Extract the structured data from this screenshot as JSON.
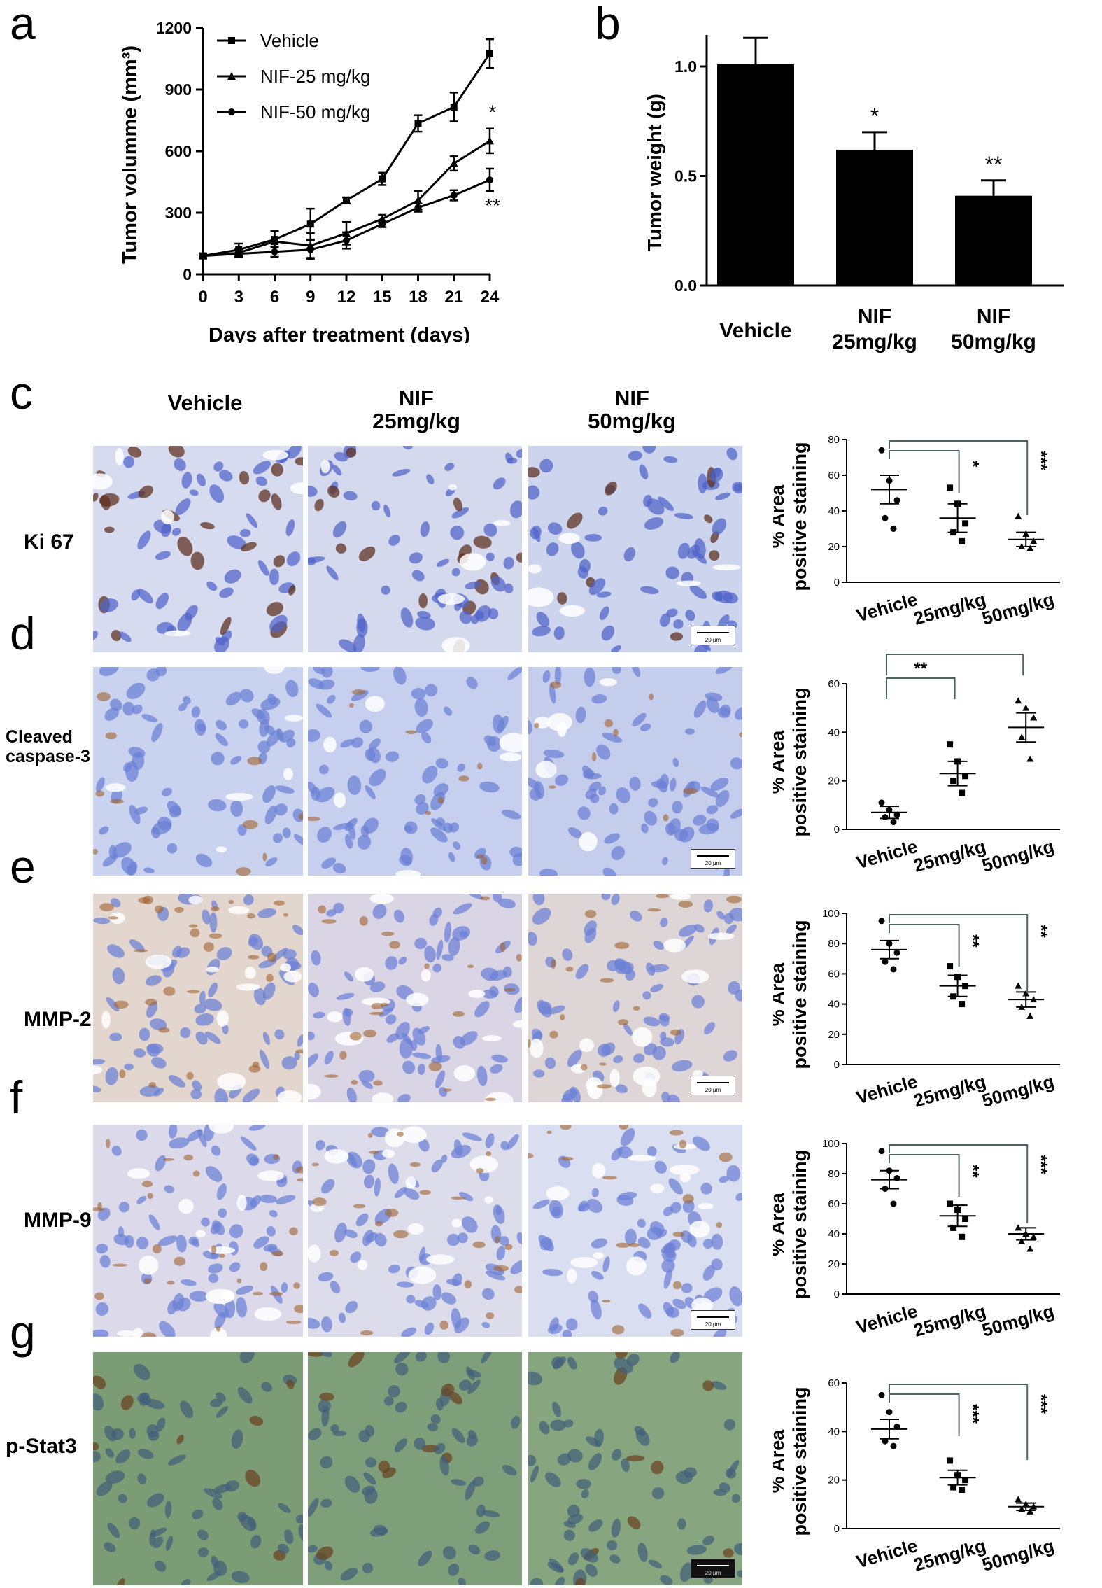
{
  "panel_labels": [
    "a",
    "b",
    "c",
    "d",
    "e",
    "f",
    "g"
  ],
  "ihc": {
    "columns": [
      {
        "line1": "Vehicle",
        "line2": ""
      },
      {
        "line1": "NIF",
        "line2": "25mg/kg"
      },
      {
        "line1": "NIF",
        "line2": "50mg/kg"
      }
    ],
    "rows": [
      {
        "label_line1": "Ki 67",
        "label_line2": "",
        "stain": "brown-nuclear",
        "tissue_colors": [
          "#d7dbef",
          "#d5d9ee",
          "#cdd4ee"
        ]
      },
      {
        "label_line1": "Cleaved",
        "label_line2": "caspase-3",
        "stain": "light-brown",
        "tissue_colors": [
          "#c9d2ee",
          "#c7cfee",
          "#c5cdec"
        ]
      },
      {
        "label_line1": "MMP-2",
        "label_line2": "",
        "stain": "brown-cytoplasmic",
        "tissue_colors": [
          "#e3d6cf",
          "#d9d5e4",
          "#ddd5d6"
        ]
      },
      {
        "label_line1": "MMP-9",
        "label_line2": "",
        "stain": "brown-cytoplasmic",
        "tissue_colors": [
          "#dcdaea",
          "#dcdcea",
          "#d9def0"
        ]
      },
      {
        "label_line1": "p-Stat3",
        "label_line2": "",
        "stain": "brown-nuclear-on-green",
        "tissue_colors": [
          "#7b9c74",
          "#7e9f79",
          "#87a57f"
        ]
      }
    ],
    "scale_bar_label": "20 μm"
  },
  "chart_data": [
    {
      "id": "a",
      "type": "line",
      "xlabel": "Days after treatment (days)",
      "ylabel": "Tumor volumme (mm³)",
      "x": [
        0,
        3,
        6,
        9,
        12,
        15,
        18,
        21,
        24
      ],
      "xticks": [
        "0",
        "3",
        "6",
        "9",
        "12",
        "15",
        "18",
        "21",
        "24"
      ],
      "ylim": [
        0,
        1200
      ],
      "yticks": [
        "0",
        "300",
        "600",
        "900",
        "1200"
      ],
      "series": [
        {
          "name": "Vehicle",
          "marker": "square",
          "values": [
            90,
            120,
            170,
            245,
            360,
            465,
            735,
            815,
            1075
          ],
          "errors": [
            12,
            30,
            40,
            75,
            15,
            30,
            40,
            70,
            70
          ]
        },
        {
          "name": "NIF-25 mg/kg",
          "marker": "triangle",
          "values": [
            90,
            105,
            160,
            140,
            200,
            270,
            360,
            540,
            650
          ],
          "errors": [
            10,
            20,
            50,
            60,
            55,
            20,
            45,
            35,
            60
          ]
        },
        {
          "name": "NIF-50 mg/kg",
          "marker": "dot",
          "values": [
            90,
            100,
            110,
            120,
            165,
            245,
            325,
            385,
            460
          ],
          "errors": [
            10,
            15,
            25,
            45,
            40,
            15,
            20,
            25,
            55
          ]
        }
      ],
      "annotations": [
        {
          "series": "NIF-25 mg/kg",
          "text": "*"
        },
        {
          "series": "NIF-50 mg/kg",
          "text": "**"
        }
      ]
    },
    {
      "id": "b",
      "type": "bar",
      "ylabel": "Tumor  weight  (g)",
      "categories": [
        {
          "line1": "Vehicle",
          "line2": ""
        },
        {
          "line1": "NIF",
          "line2": "25mg/kg"
        },
        {
          "line1": "NIF",
          "line2": "50mg/kg"
        }
      ],
      "values": [
        1.01,
        0.62,
        0.41
      ],
      "errors": [
        0.12,
        0.08,
        0.07
      ],
      "significance": [
        "",
        "*",
        "**"
      ],
      "ylim": [
        0,
        1.0
      ],
      "yticks": [
        "0.0",
        "0.5",
        "1.0"
      ]
    },
    {
      "id": "c",
      "type": "scatter",
      "ylabel_line1": "% Area",
      "ylabel_line2": "positive staining",
      "categories": [
        "Vehicle",
        "25mg/kg",
        "50mg/kg"
      ],
      "ylim": [
        0,
        80
      ],
      "yticks": [
        "0",
        "20",
        "40",
        "60",
        "80"
      ],
      "points": [
        [
          74,
          57,
          46,
          36,
          30
        ],
        [
          53,
          44,
          33,
          28,
          23
        ],
        [
          37,
          27,
          23,
          20,
          19
        ]
      ],
      "means": [
        52,
        36,
        24
      ],
      "sem": [
        8,
        8,
        4
      ],
      "comparisons": [
        {
          "to": 1,
          "label": "*"
        },
        {
          "to": 2,
          "label": "***"
        }
      ],
      "bracket_style": "top-vertical"
    },
    {
      "id": "d",
      "type": "scatter",
      "ylabel_line1": "% Area",
      "ylabel_line2": "positive staining",
      "categories": [
        "Vehicle",
        "25mg/kg",
        "50mg/kg"
      ],
      "ylim": [
        0,
        60
      ],
      "yticks": [
        "0",
        "20",
        "40",
        "60"
      ],
      "points": [
        [
          11,
          8,
          6,
          5,
          3
        ],
        [
          35,
          28,
          22,
          20,
          15
        ],
        [
          53,
          50,
          46,
          38,
          29
        ]
      ],
      "means": [
        7,
        23,
        42
      ],
      "sem": [
        2.5,
        5,
        6
      ],
      "comparisons": [
        {
          "to": 1,
          "label": "**"
        },
        {
          "to": 2,
          "label": "***"
        }
      ],
      "bracket_style": "horizontal"
    },
    {
      "id": "e",
      "type": "scatter",
      "ylabel_line1": "% Area",
      "ylabel_line2": "positive staining",
      "categories": [
        "Vehicle",
        "25mg/kg",
        "50mg/kg"
      ],
      "ylim": [
        0,
        100
      ],
      "yticks": [
        "0",
        "20",
        "40",
        "60",
        "80",
        "100"
      ],
      "points": [
        [
          95,
          80,
          74,
          68,
          63
        ],
        [
          65,
          58,
          52,
          45,
          40
        ],
        [
          52,
          47,
          43,
          38,
          32
        ]
      ],
      "means": [
        76,
        52,
        43
      ],
      "sem": [
        6,
        7,
        5
      ],
      "comparisons": [
        {
          "to": 1,
          "label": "**"
        },
        {
          "to": 2,
          "label": "**"
        }
      ],
      "bracket_style": "top-vertical"
    },
    {
      "id": "f",
      "type": "scatter",
      "ylabel_line1": "% Area",
      "ylabel_line2": "positive staining",
      "categories": [
        "Vehicle",
        "25mg/kg",
        "50mg/kg"
      ],
      "ylim": [
        0,
        100
      ],
      "yticks": [
        "0",
        "20",
        "40",
        "60",
        "80",
        "100"
      ],
      "points": [
        [
          95,
          82,
          77,
          70,
          60
        ],
        [
          60,
          56,
          50,
          44,
          38
        ],
        [
          44,
          40,
          38,
          35,
          30
        ]
      ],
      "means": [
        76,
        52,
        40
      ],
      "sem": [
        6,
        7,
        4
      ],
      "comparisons": [
        {
          "to": 1,
          "label": "**"
        },
        {
          "to": 2,
          "label": "***"
        }
      ],
      "bracket_style": "top-vertical"
    },
    {
      "id": "g",
      "type": "scatter",
      "ylabel_line1": "% Area",
      "ylabel_line2": "positive staining",
      "categories": [
        "Vehicle",
        "25mg/kg",
        "50mg/kg"
      ],
      "ylim": [
        0,
        60
      ],
      "yticks": [
        "0",
        "20",
        "40",
        "60"
      ],
      "points": [
        [
          55,
          48,
          42,
          36,
          34
        ],
        [
          28,
          22,
          20,
          17,
          16
        ],
        [
          12,
          10,
          9,
          8,
          7
        ]
      ],
      "means": [
        41,
        21,
        9
      ],
      "sem": [
        4,
        3,
        1.5
      ],
      "comparisons": [
        {
          "to": 1,
          "label": "***"
        },
        {
          "to": 2,
          "label": "***"
        }
      ],
      "bracket_style": "top-vertical"
    }
  ]
}
